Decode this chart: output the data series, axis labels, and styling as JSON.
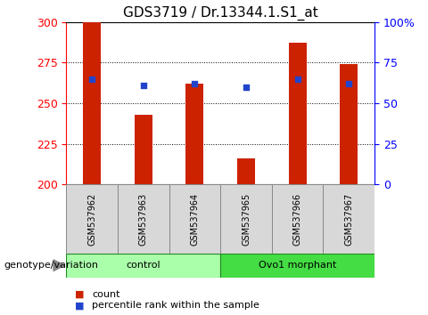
{
  "title": "GDS3719 / Dr.13344.1.S1_at",
  "samples": [
    "GSM537962",
    "GSM537963",
    "GSM537964",
    "GSM537965",
    "GSM537966",
    "GSM537967"
  ],
  "counts": [
    300,
    243,
    262,
    216,
    287,
    274
  ],
  "percentiles": [
    65,
    61,
    62,
    60,
    65,
    62
  ],
  "ylim_left": [
    200,
    300
  ],
  "ylim_right": [
    0,
    100
  ],
  "yticks_left": [
    200,
    225,
    250,
    275,
    300
  ],
  "yticks_right": [
    0,
    25,
    50,
    75,
    100
  ],
  "ytick_right_labels": [
    "0",
    "25",
    "50",
    "75",
    "100%"
  ],
  "bar_color": "#cc2200",
  "dot_color": "#2244cc",
  "grid_color": "#000000",
  "groups": [
    {
      "label": "control",
      "indices": [
        0,
        1,
        2
      ],
      "color": "#aaffaa"
    },
    {
      "label": "Ovo1 morphant",
      "indices": [
        3,
        4,
        5
      ],
      "color": "#44dd44"
    }
  ],
  "group_label_prefix": "genotype/variation",
  "legend_count_label": "count",
  "legend_percentile_label": "percentile rank within the sample",
  "bar_width": 0.35,
  "title_fontsize": 11,
  "tick_fontsize": 9,
  "label_fontsize": 8
}
